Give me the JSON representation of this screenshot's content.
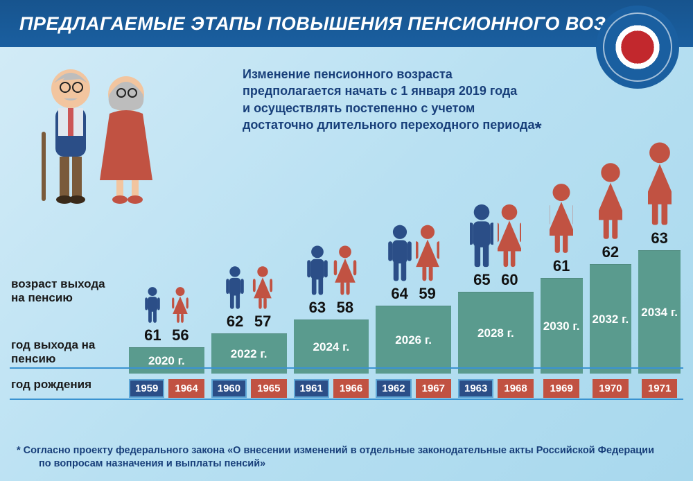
{
  "title": "ПРЕДЛАГАЕМЫЕ ЭТАПЫ ПОВЫШЕНИЯ ПЕНСИОННОГО ВОЗРАСТА",
  "subtitle_lines": [
    "Изменение пенсионного возраста",
    "предполагается начать с 1 января 2019 года",
    "и осуществлять постепенно с учетом",
    "достаточно длительного переходного периода"
  ],
  "labels": {
    "age": "возраст выхода на пенсию",
    "year": "год выхода на пенсию",
    "birth": "год рождения"
  },
  "footnote_l1": "* Согласно проекту федерального закона «О внесении изменений в отдельные законодательные акты Российской Федерации",
  "footnote_l2": "по вопросам назначения и выплаты пенсий»",
  "style": {
    "male_color": "#2b4e87",
    "female_color": "#c15242",
    "bar_color": "#5a9b8e",
    "male_box_bg": "#2b4e87",
    "male_box_border": "#5fa7d6",
    "female_box_bg": "#c15242",
    "female_box_border": "#c15242",
    "divider_color": "#3a93d1",
    "header_color": "#17548e",
    "text_color_dark": "#111",
    "subtitle_color": "#183f7a",
    "icon_base_h": 54,
    "icon_step_h": 10,
    "bar_base_h": 38,
    "bar_step_h": 20
  },
  "columns": [
    {
      "year": "2020 г.",
      "male_age": "61",
      "female_age": "56",
      "male_birth": "1959",
      "female_birth": "1964"
    },
    {
      "year": "2022 г.",
      "male_age": "62",
      "female_age": "57",
      "male_birth": "1960",
      "female_birth": "1965"
    },
    {
      "year": "2024 г.",
      "male_age": "63",
      "female_age": "58",
      "male_birth": "1961",
      "female_birth": "1966"
    },
    {
      "year": "2026 г.",
      "male_age": "64",
      "female_age": "59",
      "male_birth": "1962",
      "female_birth": "1967"
    },
    {
      "year": "2028 г.",
      "male_age": "65",
      "female_age": "60",
      "male_birth": "1963",
      "female_birth": "1968"
    },
    {
      "year": "2030 г.",
      "female_age": "61",
      "female_birth": "1969"
    },
    {
      "year": "2032 г.",
      "female_age": "62",
      "female_birth": "1970"
    },
    {
      "year": "2034 г.",
      "female_age": "63",
      "female_birth": "1971"
    }
  ]
}
